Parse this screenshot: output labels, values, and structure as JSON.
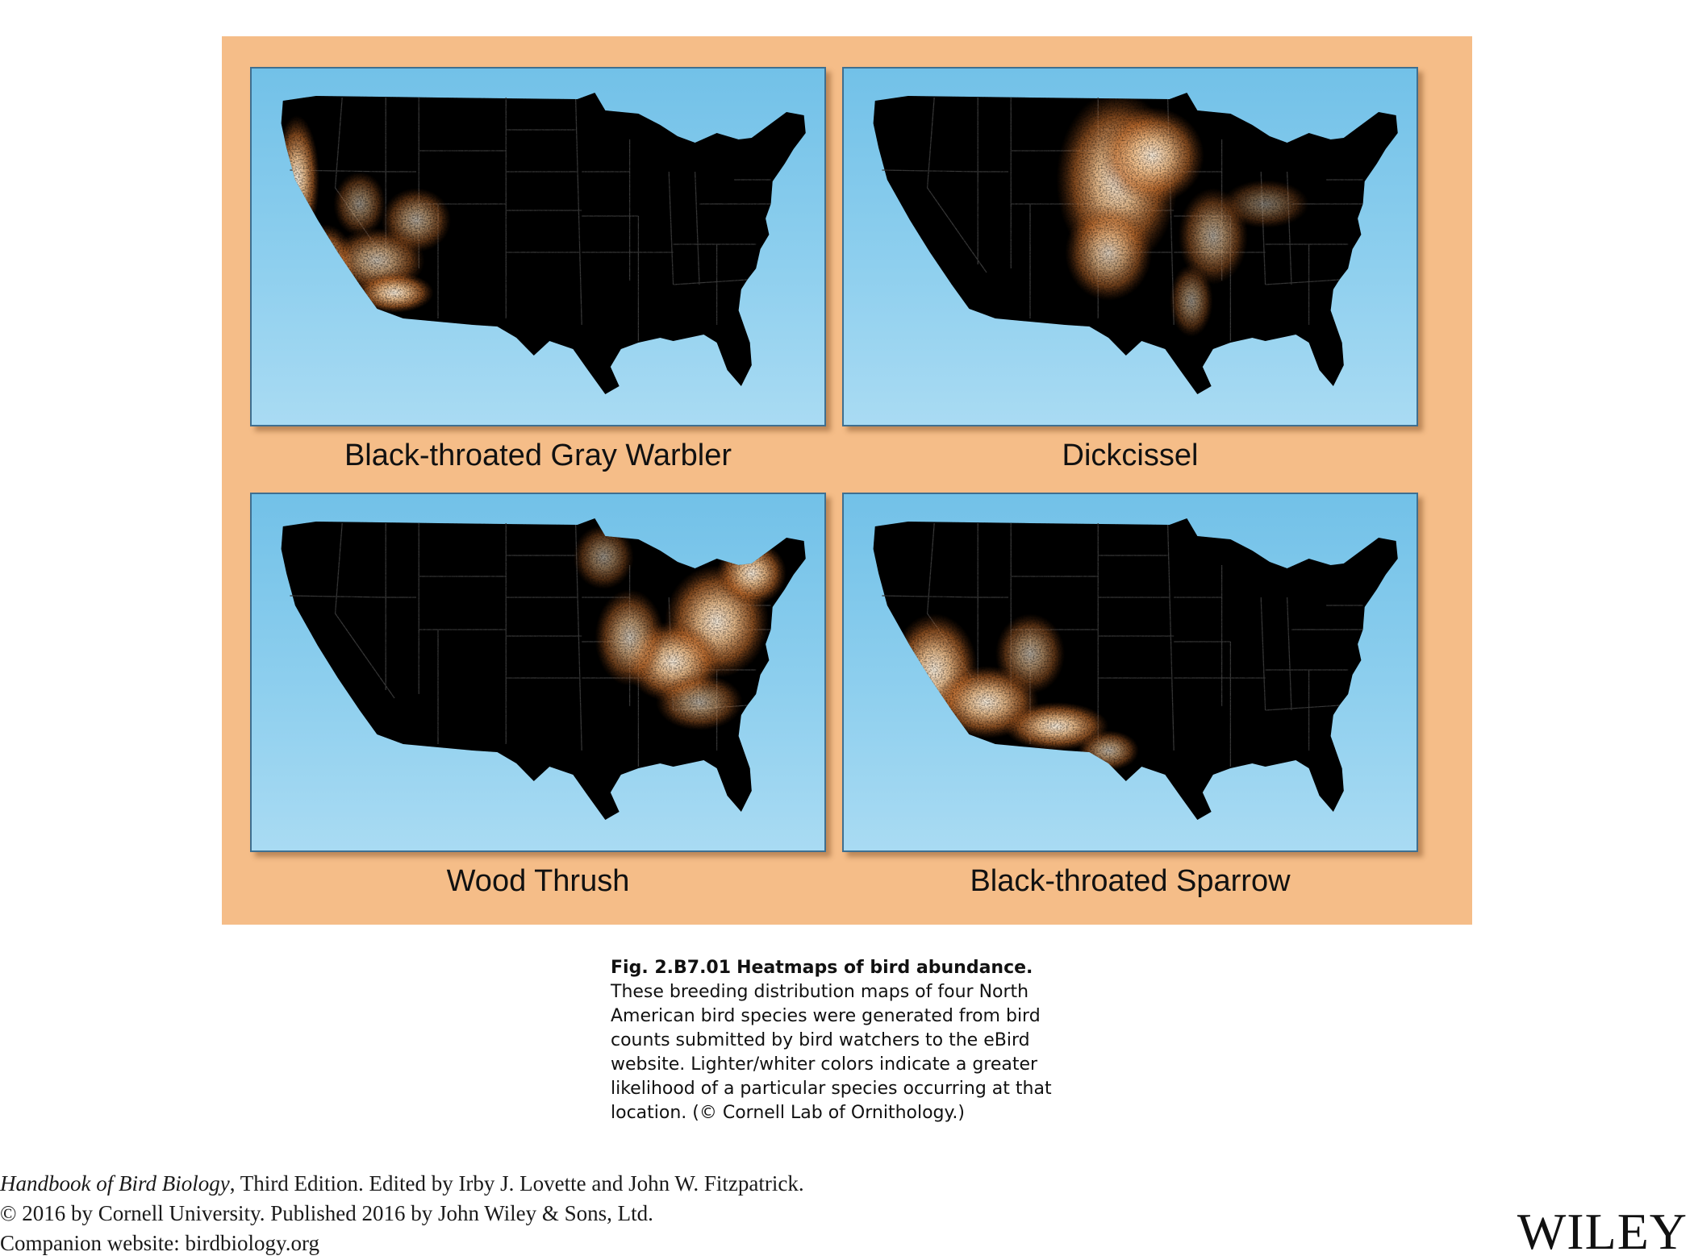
{
  "panels": [
    {
      "species": "Black-throated Gray Warbler",
      "range": "west"
    },
    {
      "species": "Dickcissel",
      "range": "central"
    },
    {
      "species": "Wood Thrush",
      "range": "east"
    },
    {
      "species": "Black-throated Sparrow",
      "range": "southwest"
    }
  ],
  "colors": {
    "panel_background": "#f5bd88",
    "ocean_top": "#72c1e8",
    "ocean_bottom": "#a9dbf3",
    "land": "#000000",
    "abundance_low": "#7a3a10",
    "abundance_mid": "#e59a58",
    "abundance_high": "#fff3e2"
  },
  "caption": {
    "label": "Fig. 2.B7.01",
    "title": "Heatmaps of bird abundance.",
    "body": "These breeding distribution maps of four North American bird species were generated from bird counts submitted by bird watchers to the eBird website. Lighter/whiter colors indicate a greater likelihood of a particular species occurring at that location. (© Cornell Lab of Ornithology.)"
  },
  "credits": {
    "book_title": "Handbook of Bird Biology",
    "edition_line": ", Third Edition. Edited by Irby J. Lovette and John W. Fitzpatrick.",
    "copyright_line": "© 2016 by Cornell University. Published 2016 by John Wiley & Sons, Ltd.",
    "website_line": "Companion website: birdbiology.org"
  },
  "publisher": "WILEY"
}
